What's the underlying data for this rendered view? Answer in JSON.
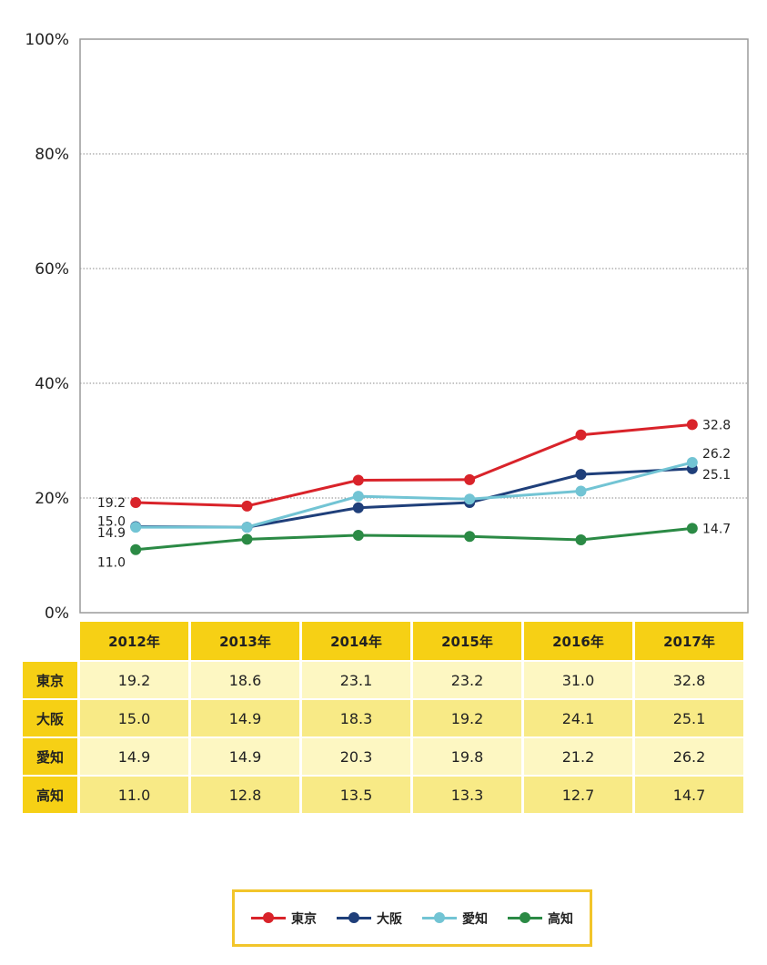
{
  "chart_data": {
    "type": "line",
    "x": [
      "2012年",
      "2013年",
      "2014年",
      "2015年",
      "2016年",
      "2017年"
    ],
    "ylim": [
      0,
      100
    ],
    "yticks": [
      "0%",
      "20%",
      "40%",
      "60%",
      "80%",
      "100%"
    ],
    "grid": true,
    "legend_position": "bottom",
    "series": [
      {
        "name": "東京",
        "color": "#d9232a",
        "values": [
          19.2,
          18.6,
          23.1,
          23.2,
          31.0,
          32.8
        ]
      },
      {
        "name": "大阪",
        "color": "#1f3f7a",
        "values": [
          15.0,
          14.9,
          18.3,
          19.2,
          24.1,
          25.1
        ]
      },
      {
        "name": "愛知",
        "color": "#72c4d4",
        "values": [
          14.9,
          14.9,
          20.3,
          19.8,
          21.2,
          26.2
        ]
      },
      {
        "name": "高知",
        "color": "#2b8a45",
        "values": [
          11.0,
          12.8,
          13.5,
          13.3,
          12.7,
          14.7
        ]
      }
    ],
    "data_labels": {
      "start": [
        "19.2",
        "15.0",
        "14.9",
        "11.0"
      ],
      "end": [
        "32.8",
        "25.1",
        "26.2",
        "14.7"
      ]
    }
  },
  "table": {
    "years": [
      "2012年",
      "2013年",
      "2014年",
      "2015年",
      "2016年",
      "2017年"
    ],
    "rows": [
      {
        "label": "東京",
        "values": [
          "19.2",
          "18.6",
          "23.1",
          "23.2",
          "31.0",
          "32.8"
        ]
      },
      {
        "label": "大阪",
        "values": [
          "15.0",
          "14.9",
          "18.3",
          "19.2",
          "24.1",
          "25.1"
        ]
      },
      {
        "label": "愛知",
        "values": [
          "14.9",
          "14.9",
          "20.3",
          "19.8",
          "21.2",
          "26.2"
        ]
      },
      {
        "label": "高知",
        "values": [
          "11.0",
          "12.8",
          "13.5",
          "13.3",
          "12.7",
          "14.7"
        ]
      }
    ]
  },
  "legend": {
    "items": [
      {
        "label": "東京",
        "color": "#d9232a"
      },
      {
        "label": "大阪",
        "color": "#1f3f7a"
      },
      {
        "label": "愛知",
        "color": "#72c4d4"
      },
      {
        "label": "高知",
        "color": "#2b8a45"
      }
    ]
  }
}
